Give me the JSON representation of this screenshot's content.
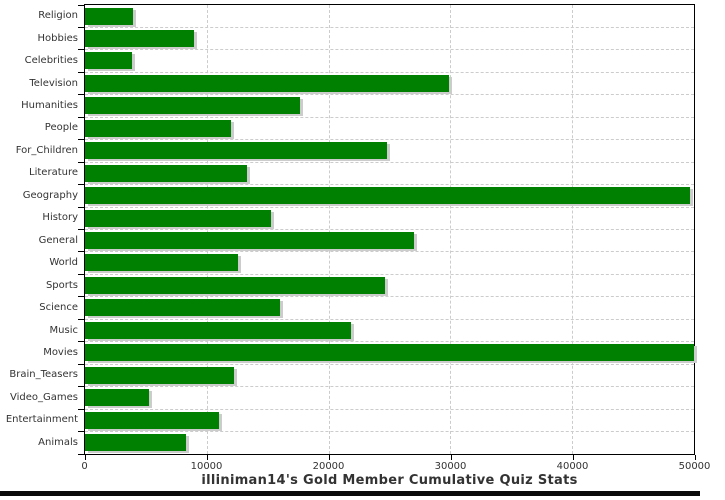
{
  "chart_data": {
    "type": "bar",
    "orientation": "horizontal",
    "title": "illiniman14's Gold Member Cumulative Quiz Stats",
    "categories": [
      "Religion",
      "Hobbies",
      "Celebrities",
      "Television",
      "Humanities",
      "People",
      "For_Children",
      "Literature",
      "Geography",
      "History",
      "General",
      "World",
      "Sports",
      "Science",
      "Music",
      "Movies",
      "Brain_Teasers",
      "Video_Games",
      "Entertainment",
      "Animals"
    ],
    "values": [
      3950,
      8930,
      3840,
      29870,
      17690,
      12000,
      24810,
      13320,
      49650,
      15230,
      27000,
      12550,
      24670,
      15990,
      21800,
      50000,
      12270,
      5240,
      10990,
      8330
    ],
    "xlabel": "",
    "ylabel": "",
    "xlim": [
      0,
      50000
    ],
    "xticks": [
      0,
      10000,
      20000,
      30000,
      40000,
      50000
    ],
    "xtick_labels": [
      "0",
      "10000",
      "20000",
      "30000",
      "40000",
      "50000"
    ],
    "grid": "dashed",
    "legend": "none",
    "colors": {
      "bar": "#008000",
      "bar_shadow": "#cccccc",
      "gridline": "#cccccc",
      "axis": "#000000",
      "labels": "#333333",
      "title": "#333333",
      "background": "#ffffff",
      "bottom_bar": "#0a0a0a"
    }
  }
}
